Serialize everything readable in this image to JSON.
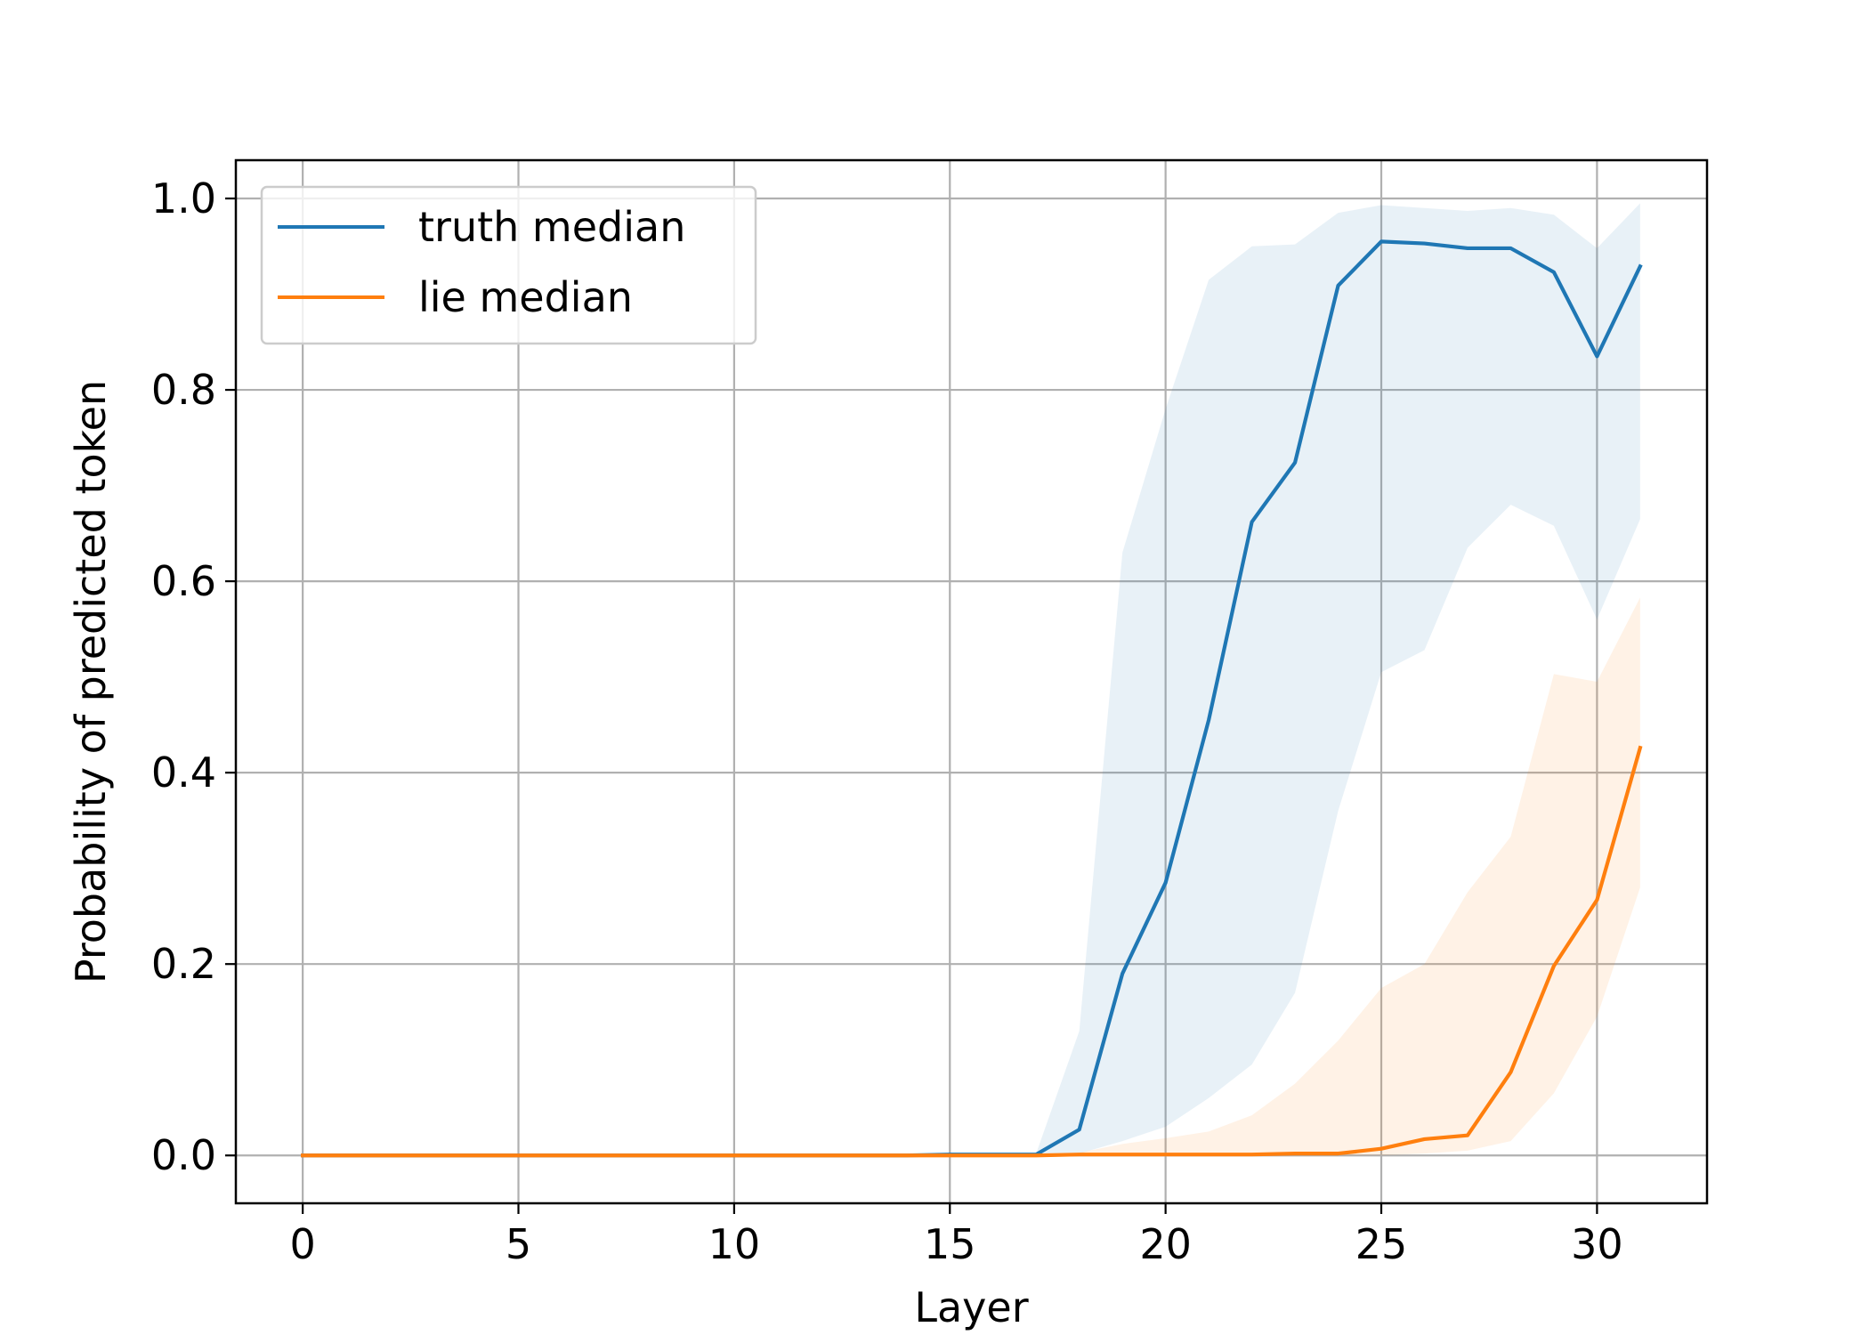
{
  "chart_data": {
    "type": "line",
    "title": "",
    "xlabel": "Layer",
    "ylabel": "Probability of predicted token",
    "xlim": [
      -1.55,
      32.55
    ],
    "ylim": [
      -0.05,
      1.04
    ],
    "xticks": [
      "0",
      "5",
      "10",
      "15",
      "20",
      "25",
      "30"
    ],
    "yticks": [
      "0.0",
      "0.2",
      "0.4",
      "0.6",
      "0.8",
      "1.0"
    ],
    "grid": true,
    "legend_position": "top-left",
    "x": [
      0,
      1,
      2,
      3,
      4,
      5,
      6,
      7,
      8,
      9,
      10,
      11,
      12,
      13,
      14,
      15,
      16,
      17,
      18,
      19,
      20,
      21,
      22,
      23,
      24,
      25,
      26,
      27,
      28,
      29,
      30,
      31
    ],
    "series": [
      {
        "name": "truth median",
        "color": "#1f77b4",
        "values": [
          0,
          0,
          0,
          0,
          0,
          0,
          0,
          0,
          0,
          0,
          0,
          0,
          0,
          0,
          0,
          0.001,
          0.001,
          0.001,
          0.027,
          0.19,
          0.285,
          0.455,
          0.662,
          0.724,
          0.909,
          0.955,
          0.953,
          0.948,
          0.948,
          0.923,
          0.835,
          0.929
        ],
        "band_upper": [
          0,
          0,
          0,
          0,
          0,
          0,
          0,
          0,
          0,
          0,
          0,
          0,
          0,
          0,
          0,
          0.002,
          0.002,
          0.002,
          0.13,
          0.63,
          0.78,
          0.915,
          0.95,
          0.952,
          0.985,
          0.993,
          0.99,
          0.987,
          0.99,
          0.983,
          0.948,
          0.995
        ],
        "band_lower": [
          0,
          0,
          0,
          0,
          0,
          0,
          0,
          0,
          0,
          0,
          0,
          0,
          0,
          0,
          0,
          0,
          0,
          0,
          0.002,
          0.015,
          0.03,
          0.06,
          0.095,
          0.17,
          0.36,
          0.505,
          0.528,
          0.635,
          0.68,
          0.658,
          0.56,
          0.665
        ],
        "band_color": "#1f77b4"
      },
      {
        "name": "lie median",
        "color": "#ff7f0e",
        "values": [
          0,
          0,
          0,
          0,
          0,
          0,
          0,
          0,
          0,
          0,
          0,
          0,
          0,
          0,
          0,
          0,
          0,
          0,
          0.001,
          0.001,
          0.001,
          0.001,
          0.001,
          0.002,
          0.002,
          0.007,
          0.017,
          0.021,
          0.087,
          0.198,
          0.267,
          0.426
        ],
        "band_upper": [
          0,
          0,
          0,
          0,
          0,
          0,
          0,
          0,
          0,
          0,
          0,
          0,
          0,
          0,
          0,
          0,
          0,
          0,
          0.003,
          0.012,
          0.018,
          0.025,
          0.042,
          0.075,
          0.12,
          0.175,
          0.2,
          0.275,
          0.333,
          0.503,
          0.495,
          0.583
        ],
        "band_lower": [
          0,
          0,
          0,
          0,
          0,
          0,
          0,
          0,
          0,
          0,
          0,
          0,
          0,
          0,
          0,
          0,
          0,
          0,
          0,
          0,
          0,
          0,
          0,
          0,
          0,
          0,
          0.002,
          0.005,
          0.015,
          0.065,
          0.145,
          0.28
        ],
        "band_color": "#ff7f0e"
      }
    ]
  }
}
